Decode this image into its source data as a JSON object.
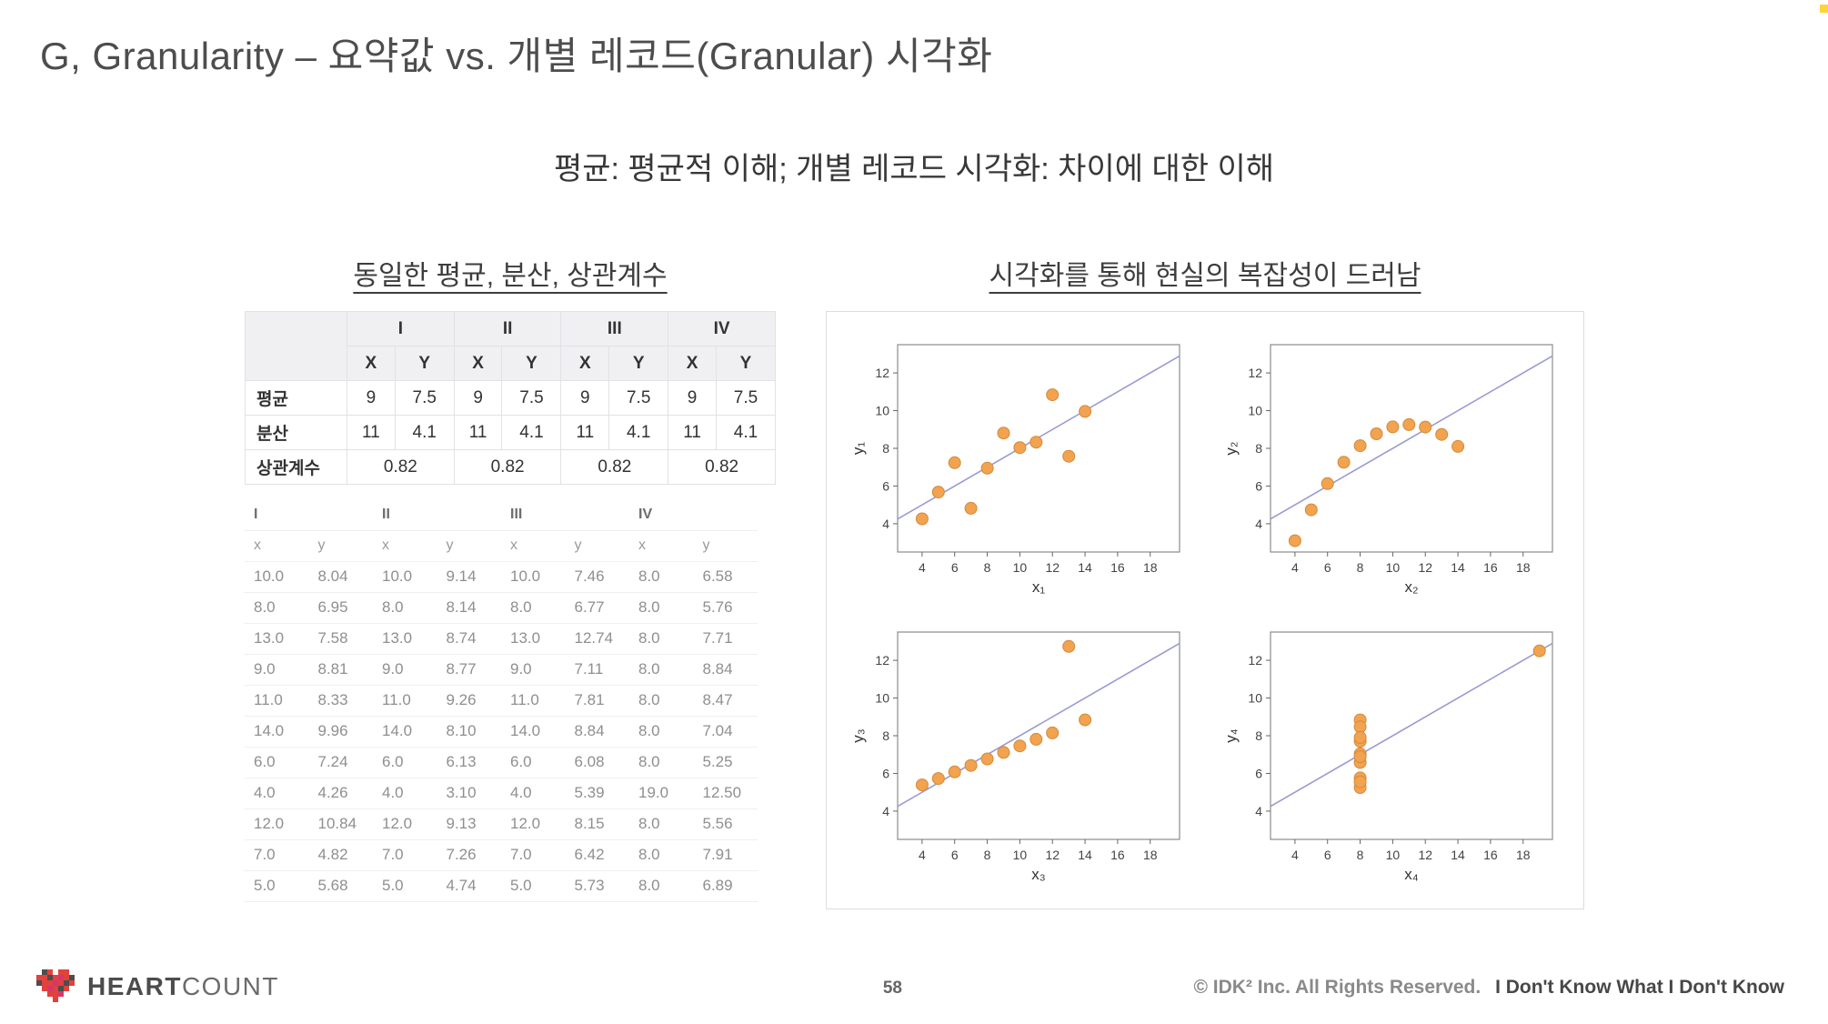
{
  "slide": {
    "title": "G, Granularity – 요약값 vs. 개별 레코드(Granular) 시각화",
    "subtitle": "평균: 평균적 이해; 개별 레코드 시각화: 차이에 대한 이해",
    "left_heading": "동일한 평균, 분산, 상관계수",
    "right_heading": "시각화를 통해 현실의 복잡성이 드러남"
  },
  "summary_table": {
    "groups": [
      "I",
      "II",
      "III",
      "IV"
    ],
    "sub_headers": [
      "X",
      "Y"
    ],
    "rows": [
      {
        "label": "평균",
        "values": [
          "9",
          "7.5",
          "9",
          "7.5",
          "9",
          "7.5",
          "9",
          "7.5"
        ]
      },
      {
        "label": "분산",
        "values": [
          "11",
          "4.1",
          "11",
          "4.1",
          "11",
          "4.1",
          "11",
          "4.1"
        ]
      },
      {
        "label": "상관계수",
        "merged_values": [
          "0.82",
          "0.82",
          "0.82",
          "0.82"
        ]
      }
    ]
  },
  "data_table": {
    "groups": [
      "I",
      "II",
      "III",
      "IV"
    ],
    "sub_headers": [
      "x",
      "y",
      "x",
      "y",
      "x",
      "y",
      "x",
      "y"
    ],
    "rows": [
      [
        "10.0",
        "8.04",
        "10.0",
        "9.14",
        "10.0",
        "7.46",
        "8.0",
        "6.58"
      ],
      [
        "8.0",
        "6.95",
        "8.0",
        "8.14",
        "8.0",
        "6.77",
        "8.0",
        "5.76"
      ],
      [
        "13.0",
        "7.58",
        "13.0",
        "8.74",
        "13.0",
        "12.74",
        "8.0",
        "7.71"
      ],
      [
        "9.0",
        "8.81",
        "9.0",
        "8.77",
        "9.0",
        "7.11",
        "8.0",
        "8.84"
      ],
      [
        "11.0",
        "8.33",
        "11.0",
        "9.26",
        "11.0",
        "7.81",
        "8.0",
        "8.47"
      ],
      [
        "14.0",
        "9.96",
        "14.0",
        "8.10",
        "14.0",
        "8.84",
        "8.0",
        "7.04"
      ],
      [
        "6.0",
        "7.24",
        "6.0",
        "6.13",
        "6.0",
        "6.08",
        "8.0",
        "5.25"
      ],
      [
        "4.0",
        "4.26",
        "4.0",
        "3.10",
        "4.0",
        "5.39",
        "19.0",
        "12.50"
      ],
      [
        "12.0",
        "10.84",
        "12.0",
        "9.13",
        "12.0",
        "8.15",
        "8.0",
        "5.56"
      ],
      [
        "7.0",
        "4.82",
        "7.0",
        "7.26",
        "7.0",
        "6.42",
        "8.0",
        "7.91"
      ],
      [
        "5.0",
        "5.68",
        "5.0",
        "4.74",
        "5.0",
        "5.73",
        "8.0",
        "6.89"
      ]
    ]
  },
  "chart_data": {
    "type": "scatter",
    "xlim": [
      2.5,
      19.8
    ],
    "ylim": [
      2.5,
      13.5
    ],
    "xticks": [
      4,
      6,
      8,
      10,
      12,
      14,
      16,
      18
    ],
    "yticks": [
      4,
      6,
      8,
      10,
      12
    ],
    "regression_line": {
      "slope": 0.5,
      "intercept": 3.0
    },
    "dot_color": "#f2a34f",
    "dot_stroke": "#d4893a",
    "line_color": "#9a9ad2",
    "charts": [
      {
        "name": "I",
        "xlabel": "x₁",
        "ylabel": "y₁",
        "x": [
          10,
          8,
          13,
          9,
          11,
          14,
          6,
          4,
          12,
          7,
          5
        ],
        "y": [
          8.04,
          6.95,
          7.58,
          8.81,
          8.33,
          9.96,
          7.24,
          4.26,
          10.84,
          4.82,
          5.68
        ]
      },
      {
        "name": "II",
        "xlabel": "x₂",
        "ylabel": "y₂",
        "x": [
          10,
          8,
          13,
          9,
          11,
          14,
          6,
          4,
          12,
          7,
          5
        ],
        "y": [
          9.14,
          8.14,
          8.74,
          8.77,
          9.26,
          8.1,
          6.13,
          3.1,
          9.13,
          7.26,
          4.74
        ]
      },
      {
        "name": "III",
        "xlabel": "x₃",
        "ylabel": "y₃",
        "x": [
          10,
          8,
          13,
          9,
          11,
          14,
          6,
          4,
          12,
          7,
          5
        ],
        "y": [
          7.46,
          6.77,
          12.74,
          7.11,
          7.81,
          8.84,
          6.08,
          5.39,
          8.15,
          6.42,
          5.73
        ]
      },
      {
        "name": "IV",
        "xlabel": "x₄",
        "ylabel": "y₄",
        "x": [
          8,
          8,
          8,
          8,
          8,
          8,
          8,
          19,
          8,
          8,
          8
        ],
        "y": [
          6.58,
          5.76,
          7.71,
          8.84,
          8.47,
          7.04,
          5.25,
          12.5,
          5.56,
          7.91,
          6.89
        ]
      }
    ]
  },
  "footer": {
    "logo_text_bold": "HEART",
    "logo_text_light": "COUNT",
    "page_number": "58",
    "copyright": "© IDK² Inc. All Rights Reserved.",
    "tagline": "I Don't Know What I Don't Know"
  }
}
